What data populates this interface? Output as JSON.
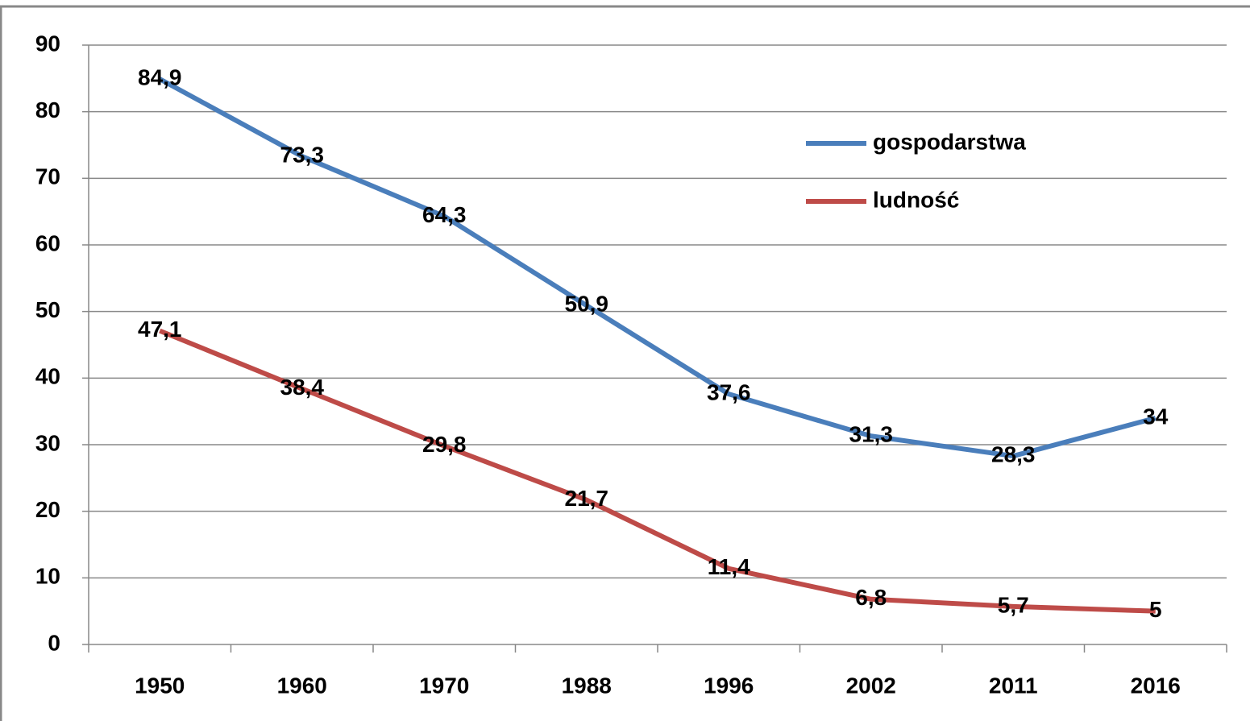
{
  "chart_data": {
    "type": "line",
    "categories": [
      "1950",
      "1960",
      "1970",
      "1988",
      "1996",
      "2002",
      "2011",
      "2016"
    ],
    "series": [
      {
        "name": "gospodarstwa",
        "color": "#4a7ebb",
        "values": [
          84.9,
          73.3,
          64.3,
          50.9,
          37.6,
          31.3,
          28.3,
          34
        ],
        "value_labels": [
          "84,9",
          "73,3",
          "64,3",
          "50,9",
          "37,6",
          "31,3",
          "28,3",
          "34"
        ]
      },
      {
        "name": "ludność",
        "color": "#be4b48",
        "values": [
          47.1,
          38.4,
          29.8,
          21.7,
          11.4,
          6.8,
          5.7,
          5
        ],
        "value_labels": [
          "47,1",
          "38,4",
          "29,8",
          "21,7",
          "11,4",
          "6,8",
          "5,7",
          "5"
        ]
      }
    ],
    "ylim": [
      0,
      90
    ],
    "yticks": [
      0,
      10,
      20,
      30,
      40,
      50,
      60,
      70,
      80,
      90
    ],
    "grid": true,
    "legend": "upper right"
  }
}
